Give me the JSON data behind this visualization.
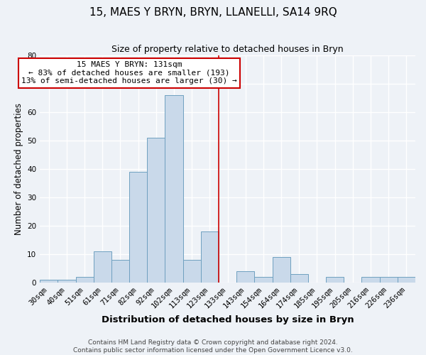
{
  "title": "15, MAES Y BRYN, BRYN, LLANELLI, SA14 9RQ",
  "subtitle": "Size of property relative to detached houses in Bryn",
  "xlabel": "Distribution of detached houses by size in Bryn",
  "ylabel": "Number of detached properties",
  "bin_labels": [
    "30sqm",
    "40sqm",
    "51sqm",
    "61sqm",
    "71sqm",
    "82sqm",
    "92sqm",
    "102sqm",
    "113sqm",
    "123sqm",
    "133sqm",
    "143sqm",
    "154sqm",
    "164sqm",
    "174sqm",
    "185sqm",
    "195sqm",
    "205sqm",
    "216sqm",
    "226sqm",
    "236sqm"
  ],
  "bar_heights": [
    1,
    1,
    2,
    11,
    8,
    39,
    51,
    66,
    8,
    18,
    0,
    4,
    2,
    9,
    3,
    0,
    2,
    0,
    2,
    2,
    2
  ],
  "bar_color": "#c9d9ea",
  "bar_edge_color": "#6fa0c0",
  "vline_color": "#cc0000",
  "vline_index": 10,
  "annotation_title": "15 MAES Y BRYN: 131sqm",
  "annotation_line1": "← 83% of detached houses are smaller (193)",
  "annotation_line2": "13% of semi-detached houses are larger (30) →",
  "annotation_box_color": "#ffffff",
  "annotation_box_edge": "#cc0000",
  "ylim": [
    0,
    80
  ],
  "footer1": "Contains HM Land Registry data © Crown copyright and database right 2024.",
  "footer2": "Contains public sector information licensed under the Open Government Licence v3.0.",
  "background_color": "#eef2f7",
  "grid_color": "#ffffff",
  "title_fontsize": 11,
  "subtitle_fontsize": 9,
  "xlabel_fontsize": 9.5,
  "ylabel_fontsize": 8.5,
  "tick_fontsize": 7.5,
  "footer_fontsize": 6.5,
  "annotation_fontsize": 8
}
